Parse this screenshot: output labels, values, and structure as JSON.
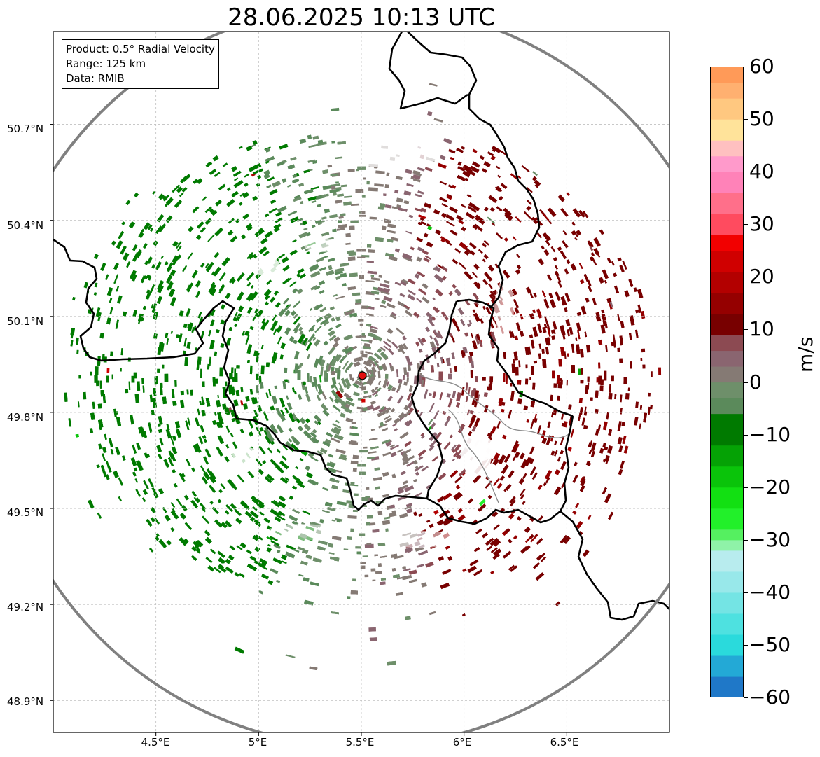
{
  "title": "28.06.2025 10:13 UTC",
  "info_box": {
    "product": "Product: 0.5° Radial Velocity",
    "range": "Range: 125 km",
    "data": "Data: RMIB"
  },
  "map": {
    "lon_range": [
      4.0,
      7.0
    ],
    "lat_range": [
      48.8,
      50.99
    ],
    "lat_ticks": [
      "50.7°N",
      "50.4°N",
      "50.1°N",
      "49.8°N",
      "49.5°N",
      "49.2°N",
      "48.9°N"
    ],
    "lon_ticks": [
      "4.5°E",
      "5°E",
      "5.5°E",
      "6°E",
      "6.5°E"
    ],
    "radar_site": {
      "lon": 5.505,
      "lat": 49.915
    },
    "range_km": 125,
    "colors": {
      "range_ring": "#808080",
      "border": "#000000",
      "site_marker": "#e01010",
      "grid": "#c0c0c0"
    }
  },
  "colorbar": {
    "label": "m/s",
    "min": -60,
    "max": 60,
    "tick_labels": [
      "60",
      "50",
      "40",
      "30",
      "20",
      "10",
      "0",
      "−10",
      "−20",
      "−30",
      "−40",
      "−50",
      "−60"
    ],
    "bands": [
      {
        "from": -60,
        "to": -56,
        "color": "#1f78c8"
      },
      {
        "from": -56,
        "to": -52,
        "color": "#23a9d6"
      },
      {
        "from": -52,
        "to": -48,
        "color": "#2adadc"
      },
      {
        "from": -48,
        "to": -44,
        "color": "#4ee1e0"
      },
      {
        "from": -44,
        "to": -40,
        "color": "#74e4e4"
      },
      {
        "from": -40,
        "to": -36,
        "color": "#98e8ea"
      },
      {
        "from": -36,
        "to": -32,
        "color": "#b8ecee"
      },
      {
        "from": -32,
        "to": -30,
        "color": "#8ff2a8"
      },
      {
        "from": -30,
        "to": -28,
        "color": "#55f060"
      },
      {
        "from": -28,
        "to": -24,
        "color": "#22f02a"
      },
      {
        "from": -24,
        "to": -20,
        "color": "#12e012"
      },
      {
        "from": -20,
        "to": -16,
        "color": "#0ac40a"
      },
      {
        "from": -16,
        "to": -12,
        "color": "#05a205"
      },
      {
        "from": -12,
        "to": -6,
        "color": "#007a00"
      },
      {
        "from": -6,
        "to": -3,
        "color": "#5b8a5b"
      },
      {
        "from": -3,
        "to": 0,
        "color": "#6e8f6a"
      },
      {
        "from": 0,
        "to": 3,
        "color": "#857a74"
      },
      {
        "from": 3,
        "to": 6,
        "color": "#8a6570"
      },
      {
        "from": 6,
        "to": 9,
        "color": "#8c4a52"
      },
      {
        "from": 9,
        "to": 13,
        "color": "#780000"
      },
      {
        "from": 13,
        "to": 17,
        "color": "#950000"
      },
      {
        "from": 17,
        "to": 21,
        "color": "#b30000"
      },
      {
        "from": 21,
        "to": 25,
        "color": "#d00000"
      },
      {
        "from": 25,
        "to": 28,
        "color": "#f20000"
      },
      {
        "from": 28,
        "to": 32,
        "color": "#ff4b5f"
      },
      {
        "from": 32,
        "to": 36,
        "color": "#ff6f8a"
      },
      {
        "from": 36,
        "to": 40,
        "color": "#ff82b8"
      },
      {
        "from": 40,
        "to": 43,
        "color": "#ff9acb"
      },
      {
        "from": 43,
        "to": 46,
        "color": "#ffc0c0"
      },
      {
        "from": 46,
        "to": 50,
        "color": "#ffe39a"
      },
      {
        "from": 50,
        "to": 54,
        "color": "#ffc880"
      },
      {
        "from": 54,
        "to": 57,
        "color": "#ffb070"
      },
      {
        "from": 57,
        "to": 60,
        "color": "#ff9a58"
      }
    ]
  }
}
